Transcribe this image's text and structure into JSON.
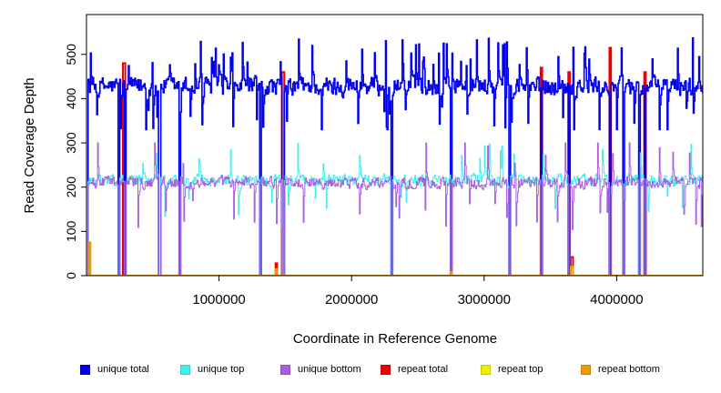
{
  "chart_data": {
    "type": "line",
    "title": "",
    "xlabel": "Coordinate in Reference Genome",
    "ylabel": "Read Coverage Depth",
    "xlim": [
      0,
      4650000
    ],
    "ylim": [
      0,
      590
    ],
    "x_ticks": [
      1000000,
      2000000,
      3000000,
      4000000
    ],
    "x_tick_labels": [
      "1000000",
      "2000000",
      "3000000",
      "4000000"
    ],
    "y_ticks": [
      0,
      100,
      200,
      300,
      400,
      500
    ],
    "y_tick_labels": [
      "0",
      "100",
      "200",
      "300",
      "400",
      "500"
    ],
    "grid": false,
    "legend_position": "bottom",
    "series": [
      {
        "name": "unique total",
        "color": "#0000EE",
        "baseline": 430,
        "range": [
          330,
          590
        ]
      },
      {
        "name": "unique top",
        "color": "#44EEEE",
        "baseline": 215,
        "range": [
          120,
          310
        ]
      },
      {
        "name": "unique bottom",
        "color": "#A95FE0",
        "baseline": 210,
        "range": [
          75,
          300
        ]
      },
      {
        "name": "repeat total",
        "color": "#EE0000",
        "baseline": 0,
        "range": [
          0,
          515
        ]
      },
      {
        "name": "repeat top",
        "color": "#EEEE00",
        "baseline": 0,
        "range": [
          0,
          5
        ]
      },
      {
        "name": "repeat bottom",
        "color": "#EE9900",
        "baseline": 0,
        "range": [
          0,
          75
        ]
      }
    ],
    "coverage_drops": [
      0,
      240000,
      290000,
      550000,
      700000,
      1310000,
      1480000,
      2300000,
      2750000,
      3190000,
      3430000,
      3640000,
      3950000,
      4050000,
      4170000,
      4210000
    ],
    "repeat_total_peaks": [
      {
        "x": 280000,
        "y": 480
      },
      {
        "x": 1480000,
        "y": 460
      },
      {
        "x": 3430000,
        "y": 470
      },
      {
        "x": 3640000,
        "y": 460
      },
      {
        "x": 3950000,
        "y": 515
      },
      {
        "x": 4210000,
        "y": 460
      },
      {
        "x": 1430000,
        "y": 28
      },
      {
        "x": 3660000,
        "y": 42
      }
    ],
    "repeat_bottom_peaks": [
      {
        "x": 20000,
        "y": 75
      },
      {
        "x": 1430000,
        "y": 15
      },
      {
        "x": 2750000,
        "y": 8
      },
      {
        "x": 3660000,
        "y": 20
      }
    ]
  }
}
